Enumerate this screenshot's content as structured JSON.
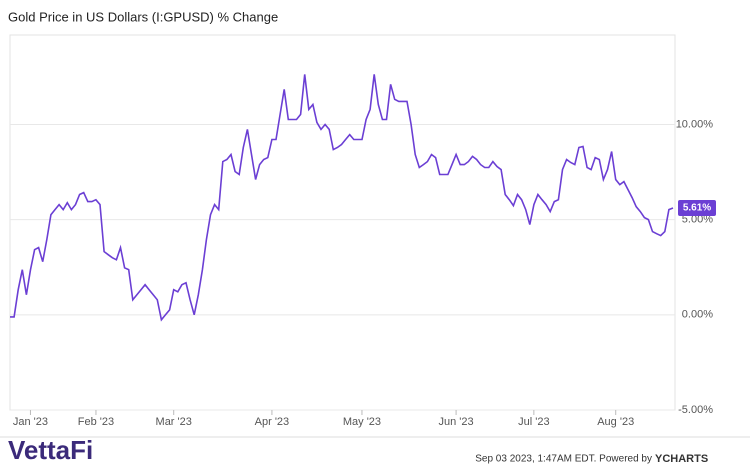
{
  "chart_data": {
    "type": "line",
    "title": "Gold Price in US Dollars (I:GPUSD) % Change",
    "categories": [
      null,
      null,
      null,
      null,
      null,
      "Jan '23",
      null,
      null,
      null,
      null,
      null,
      null,
      null,
      null,
      null,
      null,
      null,
      null,
      null,
      null,
      null,
      "Feb '23",
      null,
      null,
      null,
      null,
      null,
      null,
      null,
      null,
      null,
      null,
      null,
      null,
      null,
      null,
      null,
      null,
      null,
      null,
      "Mar '23",
      null,
      null,
      null,
      null,
      null,
      null,
      null,
      null,
      null,
      null,
      null,
      null,
      null,
      null,
      null,
      null,
      null,
      null,
      null,
      null,
      null,
      null,
      null,
      "Apr '23",
      null,
      null,
      null,
      null,
      null,
      null,
      null,
      null,
      null,
      null,
      null,
      null,
      null,
      null,
      null,
      null,
      null,
      null,
      null,
      null,
      null,
      "May '23",
      null,
      null,
      null,
      null,
      null,
      null,
      null,
      null,
      null,
      null,
      null,
      null,
      null,
      null,
      null,
      null,
      null,
      null,
      null,
      null,
      null,
      null,
      "Jun '23",
      null,
      null,
      null,
      null,
      null,
      null,
      null,
      null,
      null,
      null,
      null,
      null,
      null,
      null,
      null,
      null,
      null,
      null,
      "Jul '23",
      null,
      null,
      null,
      null,
      null,
      null,
      null,
      null,
      null,
      null,
      null,
      null,
      null,
      null,
      null,
      null,
      null,
      null,
      null,
      "Aug '23",
      null,
      null,
      null,
      null,
      null,
      null,
      null,
      null,
      null,
      null,
      null,
      null,
      null,
      null
    ],
    "series": [
      {
        "name": "Gold Price in US Dollars (I:GPUSD)",
        "color": "#6b3fd4",
        "values": [
          -0.11,
          -0.11,
          1.32,
          2.37,
          1.05,
          2.37,
          3.42,
          3.53,
          2.79,
          3.95,
          5.26,
          5.53,
          5.79,
          5.53,
          5.89,
          5.53,
          5.79,
          6.32,
          6.42,
          5.95,
          5.95,
          6.05,
          5.79,
          3.32,
          3.16,
          3.0,
          2.89,
          3.53,
          2.47,
          2.37,
          0.79,
          1.05,
          1.32,
          1.58,
          1.32,
          1.05,
          0.79,
          -0.26,
          0,
          0.26,
          1.32,
          1.21,
          1.58,
          1.68,
          0.79,
          0,
          1.05,
          2.37,
          3.95,
          5.26,
          5.79,
          5.53,
          8.05,
          8.16,
          8.42,
          7.53,
          7.37,
          8.79,
          9.74,
          8.42,
          7.11,
          7.89,
          8.16,
          8.26,
          9.21,
          9.21,
          10.53,
          11.84,
          10.26,
          10.26,
          10.26,
          10.53,
          12.63,
          10.79,
          11.05,
          10.11,
          9.74,
          10.0,
          9.74,
          8.68,
          8.79,
          8.95,
          9.21,
          9.47,
          9.21,
          9.21,
          9.21,
          10.26,
          10.79,
          12.63,
          11.05,
          10.26,
          10.26,
          12.11,
          11.32,
          11.21,
          11.21,
          11.21,
          10.0,
          8.42,
          7.74,
          7.89,
          8.05,
          8.42,
          8.26,
          7.37,
          7.37,
          7.37,
          7.89,
          8.42,
          7.89,
          7.89,
          8.05,
          8.32,
          8.16,
          7.89,
          7.74,
          7.74,
          8.05,
          7.79,
          7.63,
          6.32,
          6.05,
          5.74,
          6.32,
          6.05,
          5.53,
          4.74,
          5.79,
          6.32,
          6.05,
          5.79,
          5.42,
          5.95,
          6.05,
          7.63,
          8.16,
          8.0,
          7.89,
          8.79,
          8.84,
          7.74,
          7.63,
          8.26,
          8.16,
          7.11,
          7.63,
          8.58,
          7.11,
          6.84,
          7.0,
          6.58,
          6.16,
          5.68,
          5.42,
          5.11,
          5.0,
          4.37,
          4.26,
          4.16,
          4.37,
          5.53,
          5.61
        ]
      }
    ],
    "end_label": "5.61%",
    "ylim": [
      -5,
      14.7
    ],
    "yticks": [
      {
        "value": -5,
        "label": "-5.00%"
      },
      {
        "value": 0,
        "label": "0.00%"
      },
      {
        "value": 5,
        "label": "5.00%"
      },
      {
        "value": 10,
        "label": "10.00%"
      }
    ],
    "grid": true
  },
  "footer": {
    "timestamp": "Sep 03 2023, 1:47AM EDT. Powered by",
    "brand": "YCHARTS",
    "logo": "VettaFi"
  }
}
